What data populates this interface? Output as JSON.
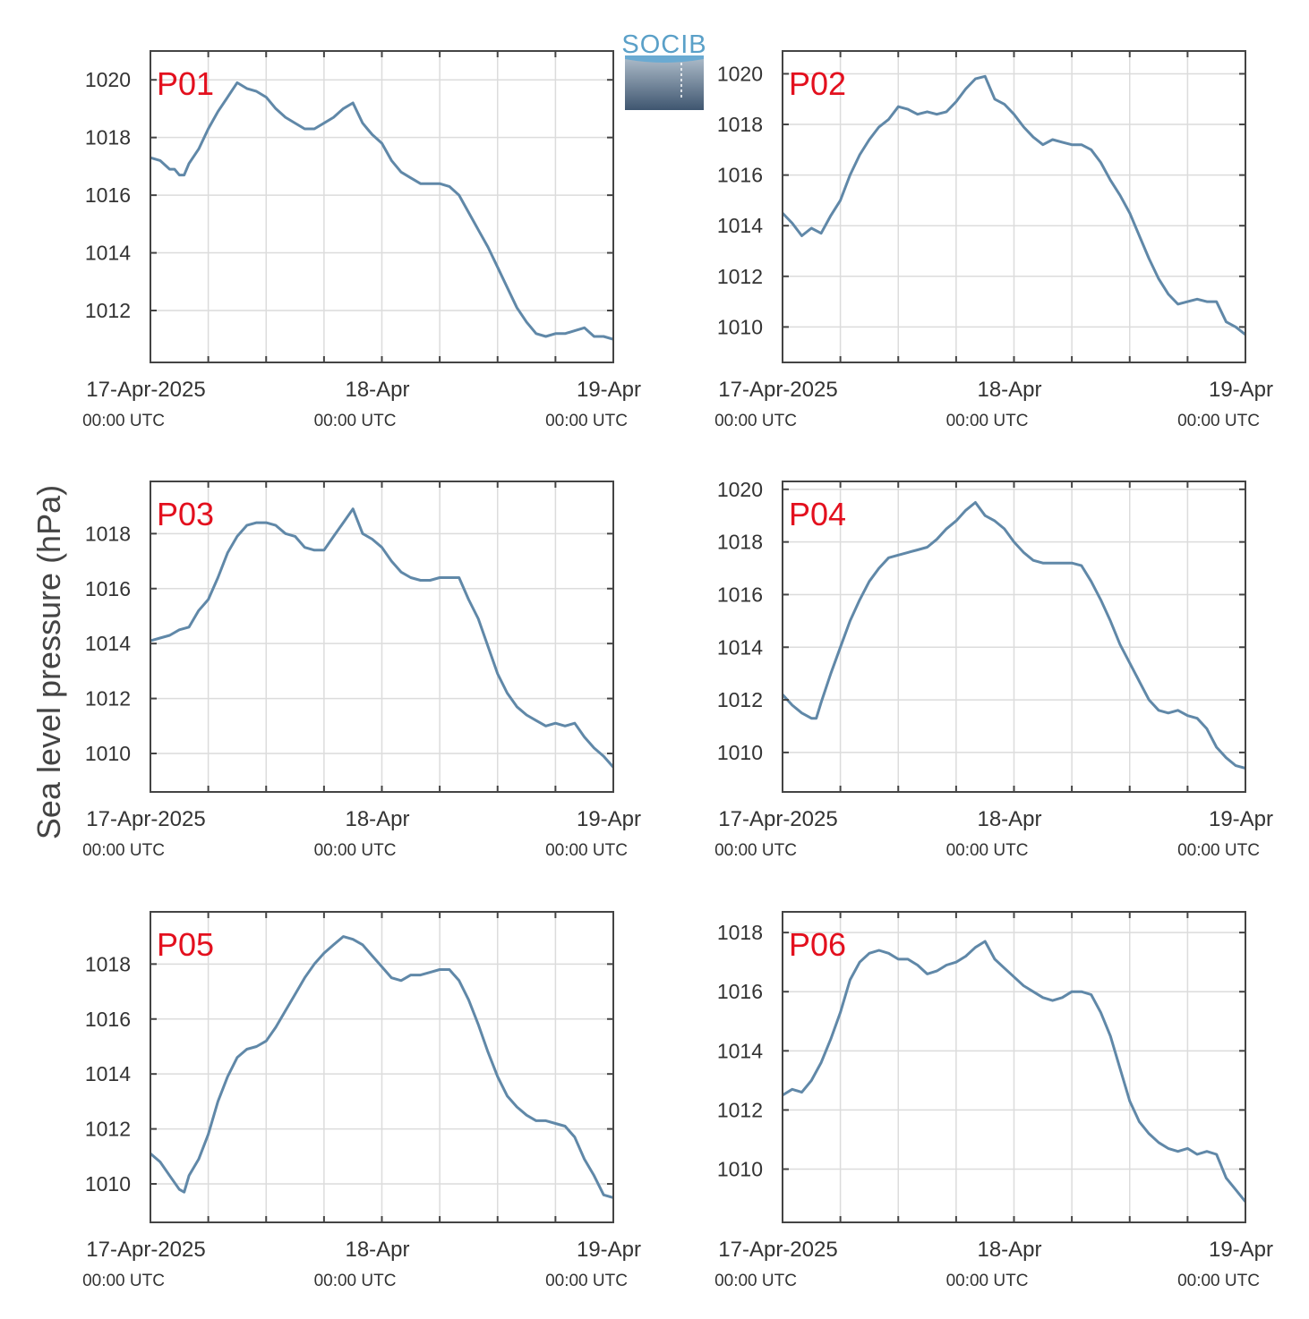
{
  "figure": {
    "ylabel": "Sea level pressure (hPa)",
    "logo_text": "SOCIB",
    "line_color": "#6088a8",
    "label_color": "#e3101e",
    "grid_color": "#dcdcdc",
    "axis_color": "#444444"
  },
  "chart_data": [
    {
      "type": "line",
      "label": "P01",
      "x_range": [
        0,
        48
      ],
      "ylim": [
        1010.2,
        1021.0
      ],
      "yticks": [
        1012,
        1014,
        1016,
        1018,
        1020
      ],
      "xticks_major": [
        {
          "x": 0,
          "date": "17-Apr-2025",
          "time": "00:00 UTC"
        },
        {
          "x": 24,
          "date": "18-Apr",
          "time": "00:00 UTC"
        },
        {
          "x": 48,
          "date": "19-Apr",
          "time": "00:00 UTC"
        }
      ],
      "x": [
        0,
        1,
        2,
        2.5,
        3,
        3.5,
        4,
        5,
        6,
        7,
        8,
        9,
        10,
        11,
        12,
        13,
        14,
        15,
        16,
        17,
        18,
        19,
        20,
        21,
        22,
        22.5,
        23,
        24,
        25,
        26,
        27,
        28,
        29,
        30,
        31,
        32,
        33,
        34,
        35,
        36,
        37,
        38,
        39,
        40,
        41,
        42,
        43,
        44,
        45,
        46,
        47,
        48
      ],
      "y": [
        1017.3,
        1017.2,
        1016.9,
        1016.9,
        1016.7,
        1016.7,
        1017.1,
        1017.6,
        1018.3,
        1018.9,
        1019.4,
        1019.9,
        1019.7,
        1019.6,
        1019.4,
        1019.0,
        1018.7,
        1018.5,
        1018.3,
        1018.3,
        1018.5,
        1018.7,
        1019.0,
        1019.2,
        1018.5,
        1018.3,
        1018.1,
        1017.8,
        1017.2,
        1016.8,
        1016.6,
        1016.4,
        1016.4,
        1016.4,
        1016.3,
        1016.0,
        1015.4,
        1014.8,
        1014.2,
        1013.5,
        1012.8,
        1012.1,
        1011.6,
        1011.2,
        1011.1,
        1011.2,
        1011.2,
        1011.3,
        1011.4,
        1011.1,
        1011.1,
        1011.0
      ]
    },
    {
      "type": "line",
      "label": "P02",
      "x_range": [
        0,
        48
      ],
      "ylim": [
        1008.6,
        1020.9
      ],
      "yticks": [
        1010,
        1012,
        1014,
        1016,
        1018,
        1020
      ],
      "xticks_major": [
        {
          "x": 0,
          "date": "17-Apr-2025",
          "time": "00:00 UTC"
        },
        {
          "x": 24,
          "date": "18-Apr",
          "time": "00:00 UTC"
        },
        {
          "x": 48,
          "date": "19-Apr",
          "time": "00:00 UTC"
        }
      ],
      "x": [
        0,
        1,
        2,
        3,
        4,
        5,
        6,
        7,
        8,
        9,
        10,
        11,
        12,
        13,
        14,
        15,
        16,
        17,
        18,
        19,
        20,
        21,
        22,
        23,
        24,
        25,
        26,
        27,
        28,
        29,
        30,
        31,
        32,
        33,
        34,
        35,
        36,
        37,
        38,
        39,
        40,
        41,
        42,
        43,
        44,
        45,
        46,
        47,
        48
      ],
      "y": [
        1014.5,
        1014.1,
        1013.6,
        1013.9,
        1013.7,
        1014.4,
        1015.0,
        1016.0,
        1016.8,
        1017.4,
        1017.9,
        1018.2,
        1018.7,
        1018.6,
        1018.4,
        1018.5,
        1018.4,
        1018.5,
        1018.9,
        1019.4,
        1019.8,
        1019.9,
        1019.0,
        1018.8,
        1018.4,
        1017.9,
        1017.5,
        1017.2,
        1017.4,
        1017.3,
        1017.2,
        1017.2,
        1017.0,
        1016.5,
        1015.8,
        1015.2,
        1014.5,
        1013.6,
        1012.7,
        1011.9,
        1011.3,
        1010.9,
        1011.0,
        1011.1,
        1011.0,
        1011.0,
        1010.2,
        1010.0,
        1009.7
      ]
    },
    {
      "type": "line",
      "label": "P03",
      "x_range": [
        0,
        48
      ],
      "ylim": [
        1008.6,
        1019.9
      ],
      "yticks": [
        1010,
        1012,
        1014,
        1016,
        1018
      ],
      "xticks_major": [
        {
          "x": 0,
          "date": "17-Apr-2025",
          "time": "00:00 UTC"
        },
        {
          "x": 24,
          "date": "18-Apr",
          "time": "00:00 UTC"
        },
        {
          "x": 48,
          "date": "19-Apr",
          "time": "00:00 UTC"
        }
      ],
      "x": [
        0,
        1,
        2,
        3,
        4,
        5,
        6,
        7,
        8,
        9,
        10,
        11,
        12,
        13,
        14,
        15,
        16,
        17,
        18,
        19,
        20,
        21,
        22,
        23,
        24,
        25,
        26,
        27,
        28,
        29,
        30,
        31,
        32,
        33,
        34,
        35,
        36,
        37,
        38,
        39,
        40,
        41,
        42,
        43,
        44,
        45,
        46,
        47,
        48
      ],
      "y": [
        1014.1,
        1014.2,
        1014.3,
        1014.5,
        1014.6,
        1015.2,
        1015.6,
        1016.4,
        1017.3,
        1017.9,
        1018.3,
        1018.4,
        1018.4,
        1018.3,
        1018.0,
        1017.9,
        1017.5,
        1017.4,
        1017.4,
        1017.9,
        1018.4,
        1018.9,
        1018.0,
        1017.8,
        1017.5,
        1017.0,
        1016.6,
        1016.4,
        1016.3,
        1016.3,
        1016.4,
        1016.4,
        1016.4,
        1015.6,
        1014.9,
        1013.9,
        1012.9,
        1012.2,
        1011.7,
        1011.4,
        1011.2,
        1011.0,
        1011.1,
        1011.0,
        1011.1,
        1010.6,
        1010.2,
        1009.9,
        1009.5
      ]
    },
    {
      "type": "line",
      "label": "P04",
      "x_range": [
        0,
        48
      ],
      "ylim": [
        1008.5,
        1020.3
      ],
      "yticks": [
        1010,
        1012,
        1014,
        1016,
        1018,
        1020
      ],
      "xticks_major": [
        {
          "x": 0,
          "date": "17-Apr-2025",
          "time": "00:00 UTC"
        },
        {
          "x": 24,
          "date": "18-Apr",
          "time": "00:00 UTC"
        },
        {
          "x": 48,
          "date": "19-Apr",
          "time": "00:00 UTC"
        }
      ],
      "x": [
        0,
        1,
        2,
        3,
        3.5,
        4,
        5,
        6,
        7,
        8,
        9,
        10,
        11,
        12,
        13,
        14,
        15,
        16,
        17,
        18,
        19,
        20,
        21,
        22,
        23,
        24,
        25,
        26,
        27,
        28,
        29,
        30,
        31,
        32,
        33,
        34,
        35,
        36,
        37,
        38,
        39,
        40,
        41,
        42,
        43,
        44,
        45,
        46,
        47,
        48
      ],
      "y": [
        1012.2,
        1011.8,
        1011.5,
        1011.3,
        1011.3,
        1011.9,
        1013.0,
        1014.0,
        1015.0,
        1015.8,
        1016.5,
        1017.0,
        1017.4,
        1017.5,
        1017.6,
        1017.7,
        1017.8,
        1018.1,
        1018.5,
        1018.8,
        1019.2,
        1019.5,
        1019.0,
        1018.8,
        1018.5,
        1018.0,
        1017.6,
        1017.3,
        1017.2,
        1017.2,
        1017.2,
        1017.2,
        1017.1,
        1016.5,
        1015.8,
        1015.0,
        1014.1,
        1013.4,
        1012.7,
        1012.0,
        1011.6,
        1011.5,
        1011.6,
        1011.4,
        1011.3,
        1010.9,
        1010.2,
        1009.8,
        1009.5,
        1009.4
      ]
    },
    {
      "type": "line",
      "label": "P05",
      "x_range": [
        0,
        48
      ],
      "ylim": [
        1008.6,
        1019.9
      ],
      "yticks": [
        1010,
        1012,
        1014,
        1016,
        1018
      ],
      "xticks_major": [
        {
          "x": 0,
          "date": "17-Apr-2025",
          "time": "00:00 UTC"
        },
        {
          "x": 24,
          "date": "18-Apr",
          "time": "00:00 UTC"
        },
        {
          "x": 48,
          "date": "19-Apr",
          "time": "00:00 UTC"
        }
      ],
      "x": [
        0,
        1,
        2,
        3,
        3.5,
        4,
        5,
        6,
        7,
        8,
        9,
        10,
        11,
        12,
        13,
        14,
        15,
        16,
        17,
        18,
        19,
        20,
        21,
        22,
        23,
        24,
        25,
        26,
        27,
        28,
        29,
        30,
        31,
        32,
        33,
        34,
        35,
        36,
        37,
        38,
        39,
        40,
        41,
        42,
        43,
        44,
        45,
        46,
        47,
        48
      ],
      "y": [
        1011.1,
        1010.8,
        1010.3,
        1009.8,
        1009.7,
        1010.3,
        1010.9,
        1011.8,
        1013.0,
        1013.9,
        1014.6,
        1014.9,
        1015.0,
        1015.2,
        1015.7,
        1016.3,
        1016.9,
        1017.5,
        1018.0,
        1018.4,
        1018.7,
        1019.0,
        1018.9,
        1018.7,
        1018.3,
        1017.9,
        1017.5,
        1017.4,
        1017.6,
        1017.6,
        1017.7,
        1017.8,
        1017.8,
        1017.4,
        1016.7,
        1015.8,
        1014.8,
        1013.9,
        1013.2,
        1012.8,
        1012.5,
        1012.3,
        1012.3,
        1012.2,
        1012.1,
        1011.7,
        1010.9,
        1010.3,
        1009.6,
        1009.5
      ]
    },
    {
      "type": "line",
      "label": "P06",
      "x_range": [
        0,
        48
      ],
      "ylim": [
        1008.2,
        1018.7
      ],
      "yticks": [
        1010,
        1012,
        1014,
        1016,
        1018
      ],
      "xticks_major": [
        {
          "x": 0,
          "date": "17-Apr-2025",
          "time": "00:00 UTC"
        },
        {
          "x": 24,
          "date": "18-Apr",
          "time": "00:00 UTC"
        },
        {
          "x": 48,
          "date": "19-Apr",
          "time": "00:00 UTC"
        }
      ],
      "x": [
        0,
        1,
        2,
        3,
        4,
        5,
        6,
        7,
        8,
        9,
        10,
        11,
        12,
        13,
        14,
        15,
        16,
        17,
        18,
        19,
        20,
        21,
        22,
        23,
        24,
        25,
        26,
        27,
        28,
        29,
        30,
        31,
        32,
        33,
        34,
        35,
        36,
        37,
        38,
        39,
        40,
        41,
        42,
        43,
        44,
        45,
        46,
        47,
        48
      ],
      "y": [
        1012.5,
        1012.7,
        1012.6,
        1013.0,
        1013.6,
        1014.4,
        1015.3,
        1016.4,
        1017.0,
        1017.3,
        1017.4,
        1017.3,
        1017.1,
        1017.1,
        1016.9,
        1016.6,
        1016.7,
        1016.9,
        1017.0,
        1017.2,
        1017.5,
        1017.7,
        1017.1,
        1016.8,
        1016.5,
        1016.2,
        1016.0,
        1015.8,
        1015.7,
        1015.8,
        1016.0,
        1016.0,
        1015.9,
        1015.3,
        1014.5,
        1013.4,
        1012.3,
        1011.6,
        1011.2,
        1010.9,
        1010.7,
        1010.6,
        1010.7,
        1010.5,
        1010.6,
        1010.5,
        1009.7,
        1009.3,
        1008.9
      ]
    }
  ]
}
